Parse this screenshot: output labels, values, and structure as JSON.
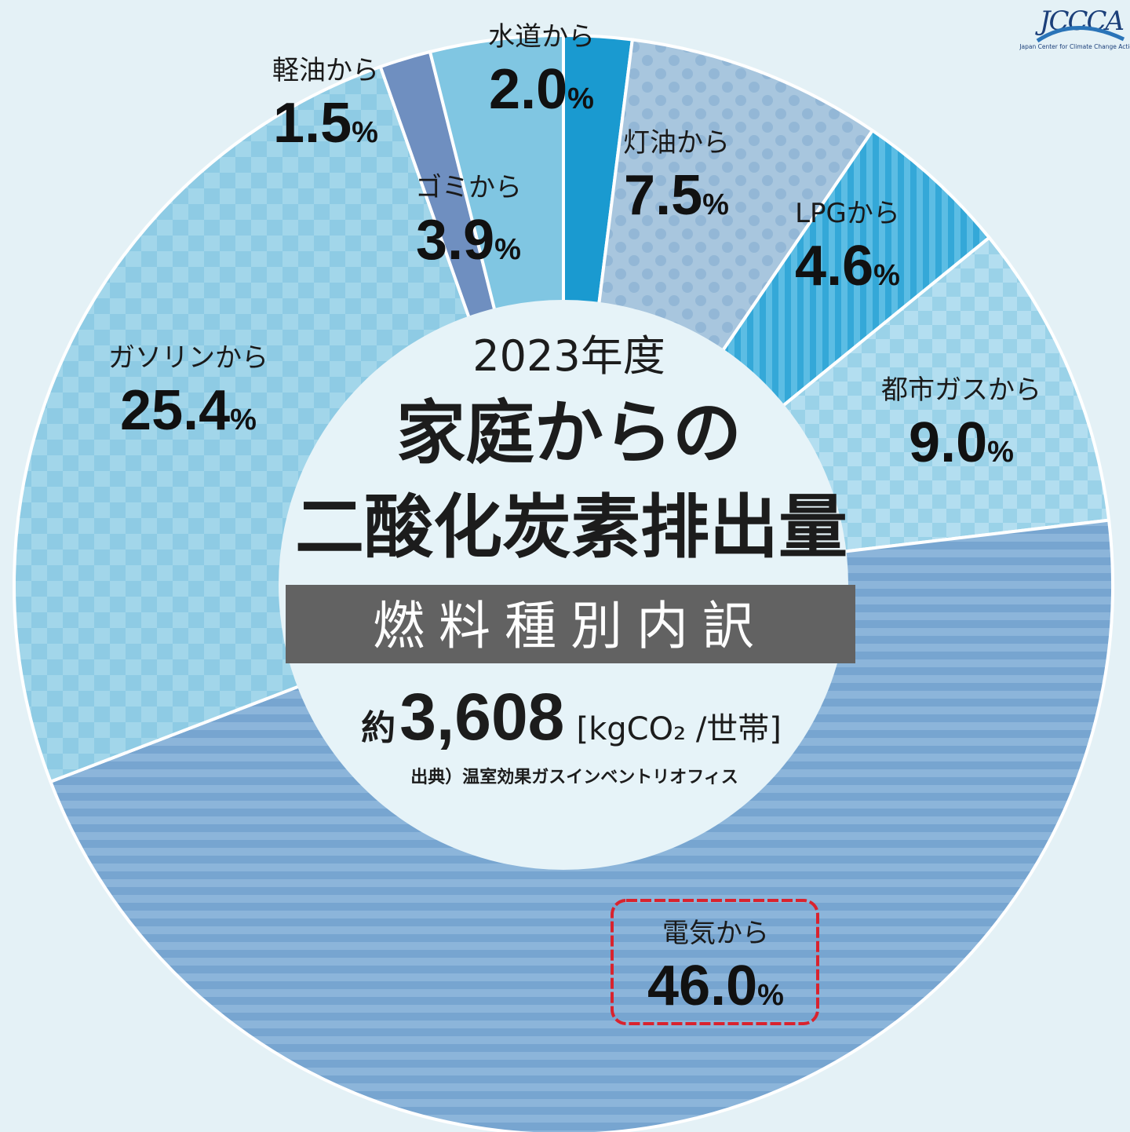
{
  "logo": {
    "text": "JCCCA",
    "subtitle": "Japan Center for Climate Change Actions"
  },
  "center": {
    "year": "2023年度",
    "title_line1": "家庭からの",
    "title_line2": "二酸化炭素排出量",
    "band": "燃料種別内訳",
    "total_prefix": "約",
    "total_value": "3,608",
    "total_unit": "[kgCO₂ /世帯]",
    "source": "出典）温室効果ガスインベントリオフィス"
  },
  "chart_data": {
    "type": "pie",
    "title": "2023年度 家庭からの二酸化炭素排出量",
    "subtitle": "燃料種別内訳",
    "unit": "%",
    "slices": [
      {
        "label": "水道から",
        "value": 2.0,
        "color": "#1a9ad0"
      },
      {
        "label": "灯油から",
        "value": 7.5,
        "color": "#a6c4dc"
      },
      {
        "label": "LPGから",
        "value": 4.6,
        "color": "#3bb0dc"
      },
      {
        "label": "都市ガスから",
        "value": 9.0,
        "color": "#9fd2e8"
      },
      {
        "label": "電気から",
        "value": 46.0,
        "color": "#7ba8d2"
      },
      {
        "label": "ガソリンから",
        "value": 25.4,
        "color": "#8dc9e3"
      },
      {
        "label": "軽油から",
        "value": 1.5,
        "color": "#6f8fc0"
      },
      {
        "label": "ゴミから",
        "value": 3.9,
        "color": "#7ec5e1"
      }
    ],
    "highlight": "電気から"
  }
}
